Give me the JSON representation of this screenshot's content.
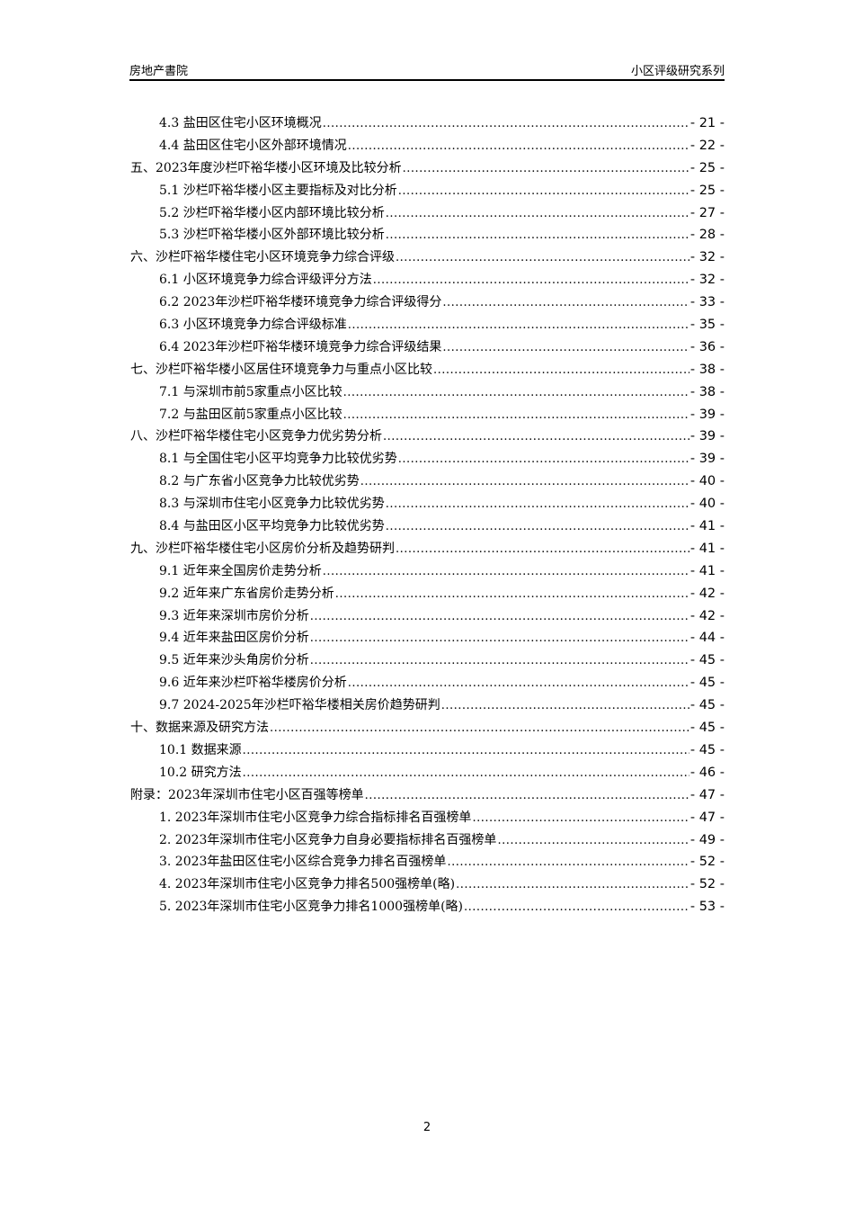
{
  "header": {
    "left": "房地产書院",
    "right": "小区评级研究系列"
  },
  "toc": [
    {
      "level": 2,
      "label": "4.3 盐田区住宅小区环境概况",
      "page": "- 21 -"
    },
    {
      "level": 2,
      "label": "4.4 盐田区住宅小区外部环境情况",
      "page": "- 22 -"
    },
    {
      "level": 1,
      "label": "五、2023年度沙栏吓裕华楼小区环境及比较分析",
      "page": "- 25 -"
    },
    {
      "level": 2,
      "label": "5.1 沙栏吓裕华楼小区主要指标及对比分析",
      "page": "- 25 -"
    },
    {
      "level": 2,
      "label": "5.2 沙栏吓裕华楼小区内部环境比较分析",
      "page": "- 27 -"
    },
    {
      "level": 2,
      "label": "5.3 沙栏吓裕华楼小区外部环境比较分析",
      "page": "- 28 -"
    },
    {
      "level": 1,
      "label": "六、沙栏吓裕华楼住宅小区环境竞争力综合评级",
      "page": "- 32 -"
    },
    {
      "level": 2,
      "label": "6.1 小区环境竞争力综合评级评分方法",
      "page": "- 32 -"
    },
    {
      "level": 2,
      "label": "6.2 2023年沙栏吓裕华楼环境竞争力综合评级得分",
      "page": "- 33 -"
    },
    {
      "level": 2,
      "label": "6.3 小区环境竞争力综合评级标准",
      "page": "- 35 -"
    },
    {
      "level": 2,
      "label": "6.4 2023年沙栏吓裕华楼环境竞争力综合评级结果",
      "page": "- 36 -"
    },
    {
      "level": 1,
      "label": "七、沙栏吓裕华楼小区居住环境竞争力与重点小区比较",
      "page": "- 38 -"
    },
    {
      "level": 2,
      "label": "7.1 与深圳市前5家重点小区比较",
      "page": "- 38 -"
    },
    {
      "level": 2,
      "label": "7.2 与盐田区前5家重点小区比较",
      "page": "- 39 -"
    },
    {
      "level": 1,
      "label": "八、沙栏吓裕华楼住宅小区竞争力优劣势分析",
      "page": "- 39 -"
    },
    {
      "level": 2,
      "label": "8.1 与全国住宅小区平均竞争力比较优劣势",
      "page": "- 39 -"
    },
    {
      "level": 2,
      "label": "8.2 与广东省小区竞争力比较优劣势",
      "page": "- 40 -"
    },
    {
      "level": 2,
      "label": "8.3 与深圳市住宅小区竞争力比较优劣势",
      "page": "- 40 -"
    },
    {
      "level": 2,
      "label": "8.4 与盐田区小区平均竞争力比较优劣势",
      "page": "- 41 -"
    },
    {
      "level": 1,
      "label": "九、沙栏吓裕华楼住宅小区房价分析及趋势研判",
      "page": "- 41 -"
    },
    {
      "level": 2,
      "label": "9.1 近年来全国房价走势分析",
      "page": "- 41 -"
    },
    {
      "level": 2,
      "label": "9.2 近年来广东省房价走势分析",
      "page": "- 42 -"
    },
    {
      "level": 2,
      "label": "9.3 近年来深圳市房价分析",
      "page": "- 42 -"
    },
    {
      "level": 2,
      "label": "9.4 近年来盐田区房价分析",
      "page": "- 44 -"
    },
    {
      "level": 2,
      "label": "9.5 近年来沙头角房价分析",
      "page": "- 45 -"
    },
    {
      "level": 2,
      "label": "9.6 近年来沙栏吓裕华楼房价分析",
      "page": "- 45 -"
    },
    {
      "level": 2,
      "label": "9.7 2024-2025年沙栏吓裕华楼相关房价趋势研判",
      "page": "- 45 -"
    },
    {
      "level": 1,
      "label": "十、数据来源及研究方法",
      "page": "- 45 -"
    },
    {
      "level": 2,
      "label": "10.1 数据来源",
      "page": "- 45 -"
    },
    {
      "level": 2,
      "label": "10.2 研究方法",
      "page": "- 46 -"
    },
    {
      "level": 1,
      "label": "附录：2023年深圳市住宅小区百强等榜单",
      "page": "- 47 -"
    },
    {
      "level": 2,
      "label": "1. 2023年深圳市住宅小区竞争力综合指标排名百强榜单",
      "page": "- 47 -"
    },
    {
      "level": 2,
      "label": "2. 2023年深圳市住宅小区竞争力自身必要指标排名百强榜单",
      "page": "- 49 -"
    },
    {
      "level": 2,
      "label": "3. 2023年盐田区住宅小区综合竞争力排名百强榜单",
      "page": "- 52 -"
    },
    {
      "level": 2,
      "label": "4. 2023年深圳市住宅小区竞争力排名500强榜单(略)",
      "page": "- 52 -"
    },
    {
      "level": 2,
      "label": "5. 2023年深圳市住宅小区竞争力排名1000强榜单(略)",
      "page": "- 53 -"
    }
  ],
  "footer": {
    "page_number": "2"
  }
}
